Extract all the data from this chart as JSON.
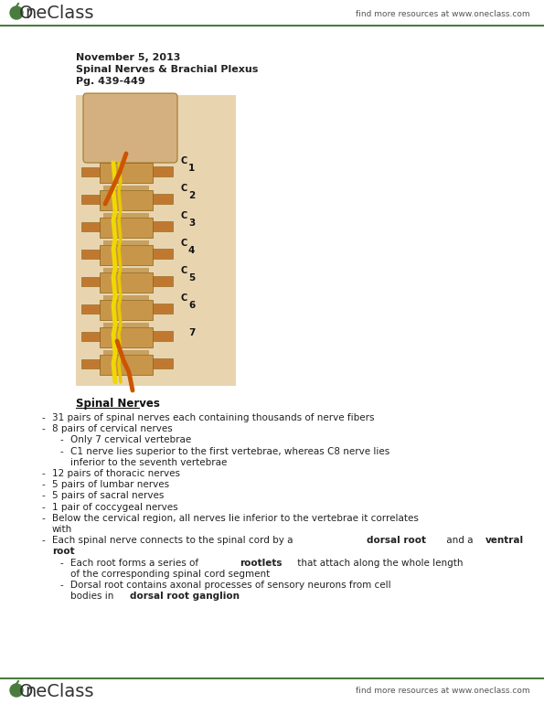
{
  "bg_color": "#ffffff",
  "header_logo_color": "#4a7c3f",
  "header_right_text": "find more resources at www.oneclass.com",
  "footer_right_text": "find more resources at www.oneclass.com",
  "top_line_color": "#4a7c3f",
  "bottom_line_color": "#4a7c3f",
  "date_line": "November 5, 2013",
  "subject_line": "Spinal Nerves & Brachial Plexus",
  "page_line": "Pg. 439-449",
  "section_title": "Spinal Nerves",
  "text_font_size": 7.5,
  "logo_font_size": 14,
  "section_title_font_size": 8.5,
  "date_font_size": 8.0,
  "text_lines": [
    {
      "level": 1,
      "text": "31 pairs of spinal nerves each containing thousands of nerve fibers",
      "bold_segments": null,
      "cont": false
    },
    {
      "level": 1,
      "text": "8 pairs of cervical nerves",
      "bold_segments": null,
      "cont": false
    },
    {
      "level": 2,
      "text": "Only 7 cervical vertebrae",
      "bold_segments": null,
      "cont": false
    },
    {
      "level": 2,
      "text": "C1 nerve lies superior to the first vertebrae, whereas C8 nerve lies",
      "bold_segments": null,
      "cont": false
    },
    {
      "level": 2,
      "text": "inferior to the seventh vertebrae",
      "bold_segments": null,
      "cont": true
    },
    {
      "level": 1,
      "text": "12 pairs of thoracic nerves",
      "bold_segments": null,
      "cont": false
    },
    {
      "level": 1,
      "text": "5 pairs of lumbar nerves",
      "bold_segments": null,
      "cont": false
    },
    {
      "level": 1,
      "text": "5 pairs of sacral nerves",
      "bold_segments": null,
      "cont": false
    },
    {
      "level": 1,
      "text": "1 pair of coccygeal nerves",
      "bold_segments": null,
      "cont": false
    },
    {
      "level": 1,
      "text": "Below the cervical region, all nerves lie inferior to the vertebrae it correlates",
      "bold_segments": null,
      "cont": false
    },
    {
      "level": 1,
      "text": "with",
      "bold_segments": null,
      "cont": true
    },
    {
      "level": 1,
      "text": null,
      "bold_segments": [
        [
          "Each spinal nerve connects to the spinal cord by a ",
          false
        ],
        [
          "dorsal root",
          true
        ],
        [
          " and a ",
          false
        ],
        [
          "ventral",
          true
        ]
      ],
      "cont": false
    },
    {
      "level": 1,
      "text": null,
      "bold_segments": [
        [
          "root",
          true
        ]
      ],
      "cont": true
    },
    {
      "level": 2,
      "text": null,
      "bold_segments": [
        [
          "Each root forms a series of ",
          false
        ],
        [
          "rootlets",
          true
        ],
        [
          " that attach along the whole length",
          false
        ]
      ],
      "cont": false
    },
    {
      "level": 2,
      "text": "of the corresponding spinal cord segment",
      "bold_segments": null,
      "cont": true
    },
    {
      "level": 2,
      "text": "Dorsal root contains axonal processes of sensory neurons from cell",
      "bold_segments": null,
      "cont": false
    },
    {
      "level": 2,
      "text": null,
      "bold_segments": [
        [
          "bodies in ",
          false
        ],
        [
          "dorsal root ganglion",
          true
        ]
      ],
      "cont": true
    }
  ]
}
